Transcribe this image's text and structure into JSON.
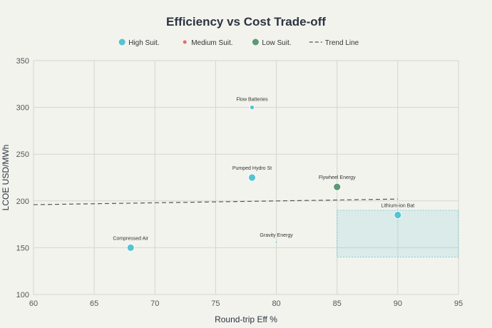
{
  "chart_data": {
    "type": "scatter",
    "title": "Efficiency vs Cost Trade-off",
    "xlabel": "Round-trip Eff %",
    "ylabel": "LCOE USD/MWh",
    "xlim": [
      60,
      95
    ],
    "ylim": [
      100,
      350
    ],
    "xticks": [
      60,
      65,
      70,
      75,
      80,
      85,
      90,
      95
    ],
    "yticks": [
      100,
      150,
      200,
      250,
      300,
      350
    ],
    "grid": true,
    "legend": {
      "placement": "top-center",
      "entries": [
        {
          "label": "High Suit.",
          "kind": "marker",
          "color": "#54c3d3"
        },
        {
          "label": "Medium Suit.",
          "kind": "marker",
          "color": "#e56b6b"
        },
        {
          "label": "Low Suit.",
          "kind": "marker",
          "color": "#5a9a72"
        },
        {
          "label": "Trend Line",
          "kind": "dash",
          "color": "#555555"
        }
      ]
    },
    "series": [
      {
        "name": "High Suit.",
        "color": "#54c3d3",
        "points": [
          {
            "label": "Flow Batteries",
            "x": 78,
            "y": 300,
            "size": 3
          },
          {
            "label": "Pumped Hydro St",
            "x": 78,
            "y": 225,
            "size": 5
          },
          {
            "label": "Lithium-ion Bat",
            "x": 90,
            "y": 185,
            "size": 5
          },
          {
            "label": "Compressed Air",
            "x": 68,
            "y": 150,
            "size": 5
          },
          {
            "label": "Gravity Energy",
            "x": 80,
            "y": 156,
            "size": 1.5
          }
        ]
      },
      {
        "name": "Medium Suit.",
        "color": "#e56b6b",
        "points": []
      },
      {
        "name": "Low Suit.",
        "color": "#5a9a72",
        "points": [
          {
            "label": "Flywheel Energy",
            "x": 85,
            "y": 215,
            "size": 5
          }
        ]
      }
    ],
    "trend_line": {
      "name": "Trend Line",
      "x": [
        60,
        90
      ],
      "y": [
        196,
        202
      ]
    },
    "highlight_region": {
      "x": [
        85,
        95
      ],
      "y": [
        140,
        190
      ],
      "color": "#54c3d3"
    }
  }
}
